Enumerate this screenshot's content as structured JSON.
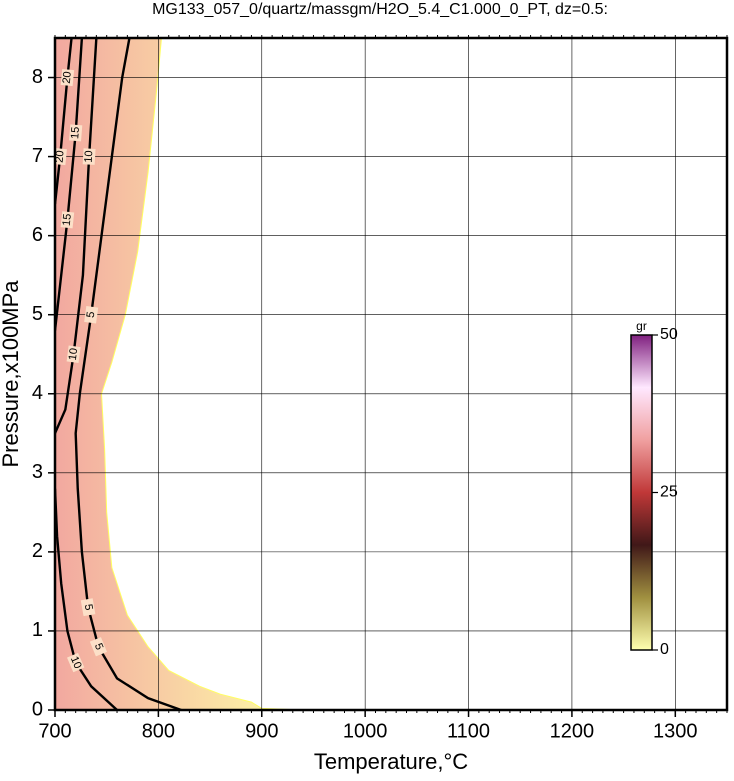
{
  "chart_data": {
    "type": "contour",
    "title": "MG133_057_0/quartz/massgm/H2O_5.4_C1.000_0_PT, dz=0.5:",
    "x_label": "Temperature,°C",
    "y_label": "Pressure,x100MPa",
    "xlim": [
      700,
      1350
    ],
    "xticks": [
      700,
      800,
      900,
      1000,
      1100,
      1200,
      1300
    ],
    "ylim": [
      0,
      8.5
    ],
    "yticks": [
      0,
      1,
      2,
      3,
      4,
      5,
      6,
      7,
      8
    ],
    "grid": true,
    "fill_region": {
      "colors": [
        "#f2a8a0",
        "#ffffa8"
      ],
      "x": [
        700,
        940,
        900,
        890,
        860,
        840,
        810,
        790,
        770,
        755,
        750,
        748,
        745,
        755,
        768,
        780,
        790,
        798,
        803,
        700
      ],
      "y": [
        0,
        0,
        0.02,
        0.1,
        0.2,
        0.3,
        0.5,
        0.8,
        1.2,
        1.8,
        2.5,
        3.3,
        4.0,
        4.4,
        5.0,
        5.8,
        6.8,
        7.8,
        8.5,
        8.5
      ]
    },
    "series": [
      {
        "level": 5,
        "color": "#000000",
        "x": [
          822,
          790,
          760,
          742,
          732,
          726,
          722,
          720,
          724,
          735,
          745,
          755,
          765,
          772
        ],
        "y": [
          0,
          0.15,
          0.4,
          0.8,
          1.3,
          2,
          2.8,
          3.5,
          4.0,
          5,
          6,
          7,
          8,
          8.5
        ]
      },
      {
        "level": 10,
        "color": "#000000",
        "x": [
          760,
          735,
          720,
          712,
          706,
          702,
          700
        ],
        "y": [
          0,
          0.3,
          0.6,
          1,
          1.6,
          2.2,
          2.8
        ]
      },
      {
        "level": 10,
        "color": "#000000",
        "x": [
          700,
          710,
          718,
          727,
          733,
          740
        ],
        "y": [
          3.5,
          3.8,
          4.5,
          5.5,
          7,
          8.5
        ]
      },
      {
        "level": 15,
        "color": "#000000",
        "x": [
          700,
          712,
          720,
          726
        ],
        "y": [
          4.8,
          6.2,
          7.3,
          8.5
        ]
      },
      {
        "level": 20,
        "color": "#000000",
        "x": [
          700,
          705,
          712,
          716
        ],
        "y": [
          6.4,
          7,
          8,
          8.5
        ]
      }
    ],
    "colorbar": {
      "label": "gr",
      "lim": [
        0,
        50
      ],
      "ticks": [
        0,
        25,
        50
      ],
      "colors": [
        "#ffffb0",
        "#a09040",
        "#401818",
        "#c03838",
        "#f0a0a0",
        "#ffe8ff",
        "#802080"
      ]
    }
  }
}
